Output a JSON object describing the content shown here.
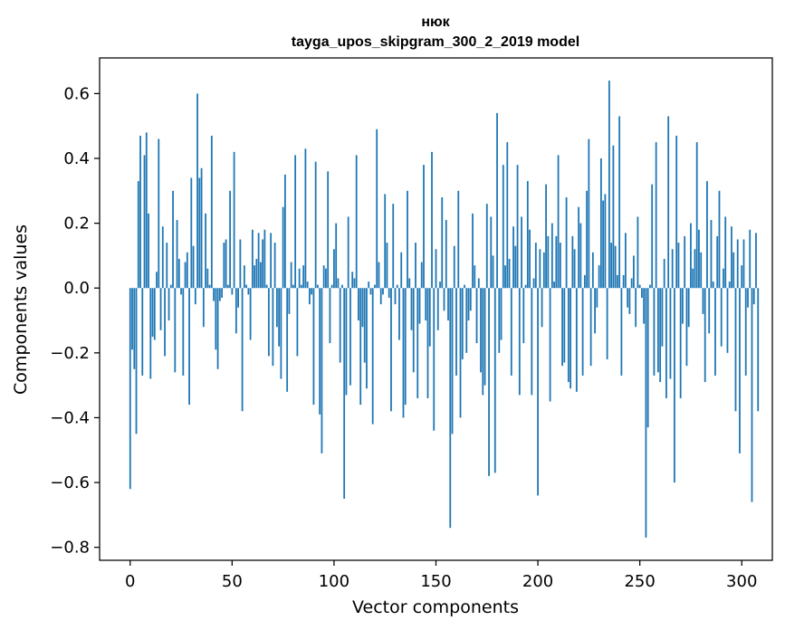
{
  "chart_data": {
    "type": "bar",
    "title_line1": "нюк",
    "title_line2": "tayga_upos_skipgram_300_2_2019 model",
    "xlabel": "Vector components",
    "ylabel": "Components values",
    "xlim": [
      -15,
      315
    ],
    "ylim": [
      -0.84,
      0.71
    ],
    "xticks": [
      0,
      50,
      100,
      150,
      200,
      250,
      300
    ],
    "yticks": [
      -0.8,
      -0.6,
      -0.4,
      -0.2,
      0.0,
      0.2,
      0.4,
      0.6
    ],
    "ytick_labels": [
      "−0.8",
      "−0.6",
      "−0.4",
      "−0.2",
      "0.0",
      "0.2",
      "0.4",
      "0.6"
    ],
    "xtick_labels": [
      "0",
      "50",
      "100",
      "150",
      "200",
      "250",
      "300"
    ],
    "bar_color": "#1f77b4",
    "grid": false,
    "values": [
      -0.62,
      -0.19,
      -0.25,
      -0.45,
      0.33,
      0.47,
      -0.27,
      0.41,
      0.48,
      0.23,
      -0.28,
      -0.15,
      -0.16,
      0.05,
      0.46,
      -0.13,
      0.19,
      -0.21,
      0.14,
      -0.1,
      0.01,
      0.3,
      -0.26,
      0.21,
      0.09,
      -0.02,
      -0.27,
      0.08,
      0.11,
      -0.36,
      0.34,
      0.13,
      -0.05,
      0.6,
      0.34,
      0.37,
      -0.12,
      0.23,
      0.06,
      0.01,
      0.47,
      -0.04,
      -0.19,
      -0.25,
      -0.04,
      -0.03,
      0.14,
      0.15,
      0.01,
      0.3,
      -0.02,
      0.42,
      -0.14,
      -0.06,
      0.15,
      -0.38,
      0.07,
      0.01,
      -0.02,
      -0.16,
      0.18,
      0.07,
      0.09,
      0.17,
      0.08,
      0.15,
      0.18,
      0.01,
      -0.21,
      0.17,
      -0.24,
      0.14,
      -0.12,
      -0.18,
      -0.28,
      0.25,
      0.35,
      -0.32,
      -0.08,
      0.08,
      0.01,
      0.41,
      -0.21,
      0.06,
      0.01,
      0.07,
      0.43,
      0.02,
      -0.05,
      -0.02,
      -0.36,
      0.39,
      0.01,
      -0.39,
      -0.51,
      0.07,
      0.06,
      0.36,
      -0.17,
      0.01,
      0.12,
      0.2,
      0.03,
      -0.23,
      0.01,
      -0.65,
      -0.33,
      0.22,
      -0.3,
      0.05,
      0.03,
      0.41,
      -0.1,
      -0.36,
      -0.12,
      -0.23,
      -0.31,
      0.02,
      -0.02,
      -0.42,
      0.01,
      0.49,
      0.08,
      -0.05,
      -0.02,
      0.29,
      0.14,
      -0.03,
      -0.38,
      0.26,
      -0.05,
      0.01,
      -0.16,
      0.11,
      -0.4,
      -0.36,
      0.3,
      0.03,
      -0.13,
      -0.26,
      0.14,
      -0.34,
      -0.11,
      0.08,
      0.38,
      -0.1,
      -0.34,
      -0.18,
      0.42,
      -0.44,
      0.12,
      -0.13,
      0.02,
      0.28,
      -0.07,
      0.21,
      -0.1,
      -0.74,
      -0.45,
      0.13,
      -0.27,
      0.3,
      -0.4,
      -0.22,
      0.01,
      -0.2,
      -0.1,
      -0.07,
      0.23,
      0.07,
      -0.17,
      0.03,
      -0.26,
      -0.33,
      -0.3,
      0.26,
      -0.58,
      0.22,
      0.1,
      -0.57,
      0.54,
      -0.2,
      -0.16,
      0.38,
      0.07,
      0.45,
      0.09,
      -0.27,
      0.19,
      0.13,
      0.38,
      -0.33,
      0.22,
      -0.17,
      0.01,
      0.33,
      0.18,
      -0.33,
      0.03,
      0.14,
      -0.64,
      0.12,
      -0.12,
      0.11,
      0.32,
      0.16,
      -0.35,
      0.2,
      0.02,
      0.16,
      0.41,
      0.14,
      -0.24,
      -0.23,
      0.28,
      -0.29,
      -0.31,
      0.16,
      0.12,
      -0.32,
      0.25,
      0.2,
      -0.27,
      0.04,
      0.3,
      0.46,
      -0.24,
      0.11,
      -0.14,
      -0.06,
      0.07,
      0.4,
      0.27,
      0.29,
      -0.22,
      0.64,
      0.14,
      0.44,
      0.13,
      0.04,
      0.53,
      -0.27,
      0.04,
      0.17,
      -0.06,
      -0.08,
      0.03,
      0.1,
      -0.12,
      0.22,
      0.01,
      -0.03,
      -0.11,
      -0.77,
      -0.43,
      0.01,
      0.32,
      -0.27,
      0.45,
      -0.26,
      -0.29,
      -0.18,
      0.09,
      -0.34,
      0.53,
      -0.28,
      0.12,
      -0.6,
      0.47,
      0.14,
      -0.34,
      -0.11,
      0.16,
      -0.24,
      -0.12,
      0.2,
      0.06,
      0.12,
      0.45,
      0.18,
      0.11,
      -0.08,
      -0.29,
      0.33,
      -0.14,
      0.21,
      0.02,
      -0.27,
      0.16,
      0.3,
      -0.18,
      0.06,
      0.22,
      -0.2,
      0.02,
      0.19,
      0.11,
      -0.38,
      0.15,
      -0.51,
      0.07,
      0.15,
      -0.27,
      -0.06,
      0.18,
      -0.66,
      -0.05,
      0.17,
      -0.38
    ]
  }
}
